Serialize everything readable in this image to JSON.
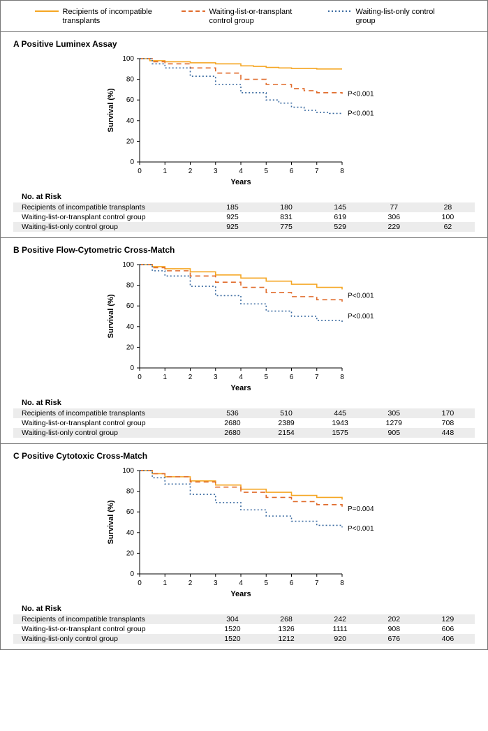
{
  "legend": {
    "items": [
      {
        "label": "Recipients of incompatible transplants",
        "color": "#f5a623",
        "dash": "solid"
      },
      {
        "label": "Waiting-list-or-transplant control group",
        "color": "#e06b2b",
        "dash": "dash"
      },
      {
        "label": "Waiting-list-only control group",
        "color": "#3a6aa0",
        "dash": "dot"
      }
    ]
  },
  "chart_common": {
    "ylabel": "Survival (%)",
    "xlabel": "Years",
    "ylim": [
      0,
      100
    ],
    "xlim": [
      0,
      8
    ],
    "yticks": [
      0,
      20,
      40,
      60,
      80,
      100
    ],
    "xticks": [
      0,
      1,
      2,
      3,
      4,
      5,
      6,
      7,
      8
    ],
    "background_color": "#ffffff",
    "axis_color": "#000000",
    "label_fontsize": 11,
    "tick_fontsize": 10,
    "line_width": 1.6
  },
  "panels": [
    {
      "key": "A",
      "title": "A  Positive Luminex Assay",
      "series": [
        {
          "legend_idx": 0,
          "points": [
            [
              0,
              100
            ],
            [
              0.4,
              98
            ],
            [
              1,
              97
            ],
            [
              2,
              96
            ],
            [
              3,
              95
            ],
            [
              4,
              93
            ],
            [
              4.5,
              92.5
            ],
            [
              5,
              91.5
            ],
            [
              5.5,
              91
            ],
            [
              6,
              90.5
            ],
            [
              7,
              90
            ],
            [
              8,
              90
            ]
          ]
        },
        {
          "legend_idx": 1,
          "points": [
            [
              0,
              100
            ],
            [
              0.5,
              97
            ],
            [
              1,
              95
            ],
            [
              2,
              91
            ],
            [
              3,
              86
            ],
            [
              4,
              80
            ],
            [
              5,
              75
            ],
            [
              6,
              71
            ],
            [
              6.5,
              69
            ],
            [
              7,
              67
            ],
            [
              8,
              66
            ]
          ]
        },
        {
          "legend_idx": 2,
          "points": [
            [
              0,
              100
            ],
            [
              0.5,
              95
            ],
            [
              1,
              91
            ],
            [
              2,
              83
            ],
            [
              3,
              75
            ],
            [
              4,
              67
            ],
            [
              5,
              60
            ],
            [
              5.5,
              57
            ],
            [
              6,
              53
            ],
            [
              6.5,
              50
            ],
            [
              7,
              48
            ],
            [
              7.5,
              47
            ],
            [
              8,
              47
            ]
          ]
        }
      ],
      "pvalues": [
        {
          "text": "P<0.001",
          "y": 66
        },
        {
          "text": "P<0.001",
          "y": 47
        }
      ],
      "risk_label": "No. at Risk",
      "risk_rows": [
        {
          "label": "Recipients of incompatible transplants",
          "vals": [
            "185",
            "180",
            "145",
            "77",
            "28"
          ]
        },
        {
          "label": "Waiting-list-or-transplant control group",
          "vals": [
            "925",
            "831",
            "619",
            "306",
            "100"
          ]
        },
        {
          "label": "Waiting-list-only control group",
          "vals": [
            "925",
            "775",
            "529",
            "229",
            "62"
          ]
        }
      ]
    },
    {
      "key": "B",
      "title": "B  Positive Flow-Cytometric Cross-Match",
      "series": [
        {
          "legend_idx": 0,
          "points": [
            [
              0,
              100
            ],
            [
              0.5,
              98
            ],
            [
              1,
              96
            ],
            [
              2,
              93
            ],
            [
              3,
              90
            ],
            [
              4,
              87
            ],
            [
              5,
              84
            ],
            [
              6,
              81
            ],
            [
              7,
              78
            ],
            [
              8,
              76
            ]
          ]
        },
        {
          "legend_idx": 1,
          "points": [
            [
              0,
              100
            ],
            [
              0.5,
              97
            ],
            [
              1,
              94
            ],
            [
              2,
              89
            ],
            [
              3,
              83
            ],
            [
              4,
              78
            ],
            [
              5,
              73
            ],
            [
              6,
              69
            ],
            [
              7,
              66
            ],
            [
              8,
              64
            ]
          ]
        },
        {
          "legend_idx": 2,
          "points": [
            [
              0,
              100
            ],
            [
              0.5,
              94
            ],
            [
              1,
              89
            ],
            [
              2,
              79
            ],
            [
              3,
              70
            ],
            [
              4,
              62
            ],
            [
              5,
              55
            ],
            [
              6,
              50
            ],
            [
              7,
              46
            ],
            [
              8,
              44
            ]
          ]
        }
      ],
      "pvalues": [
        {
          "text": "P<0.001",
          "y": 70
        },
        {
          "text": "P<0.001",
          "y": 50
        }
      ],
      "risk_label": "No. at Risk",
      "risk_rows": [
        {
          "label": "Recipients of incompatible transplants",
          "vals": [
            "536",
            "510",
            "445",
            "305",
            "170"
          ]
        },
        {
          "label": "Waiting-list-or-transplant control group",
          "vals": [
            "2680",
            "2389",
            "1943",
            "1279",
            "708"
          ]
        },
        {
          "label": "Waiting-list-only control group",
          "vals": [
            "2680",
            "2154",
            "1575",
            "905",
            "448"
          ]
        }
      ]
    },
    {
      "key": "C",
      "title": "C  Positive Cytotoxic Cross-Match",
      "series": [
        {
          "legend_idx": 0,
          "points": [
            [
              0,
              100
            ],
            [
              0.5,
              97
            ],
            [
              1,
              94
            ],
            [
              2,
              90
            ],
            [
              3,
              86
            ],
            [
              4,
              82
            ],
            [
              5,
              79
            ],
            [
              6,
              76
            ],
            [
              7,
              74
            ],
            [
              8,
              72
            ]
          ]
        },
        {
          "legend_idx": 1,
          "points": [
            [
              0,
              100
            ],
            [
              0.5,
              97
            ],
            [
              1,
              94
            ],
            [
              2,
              89
            ],
            [
              3,
              84
            ],
            [
              4,
              79
            ],
            [
              5,
              74
            ],
            [
              6,
              70
            ],
            [
              7,
              67
            ],
            [
              8,
              65
            ]
          ]
        },
        {
          "legend_idx": 2,
          "points": [
            [
              0,
              100
            ],
            [
              0.5,
              93
            ],
            [
              1,
              87
            ],
            [
              2,
              77
            ],
            [
              3,
              69
            ],
            [
              4,
              62
            ],
            [
              5,
              56
            ],
            [
              6,
              51
            ],
            [
              7,
              47
            ],
            [
              8,
              45
            ]
          ]
        }
      ],
      "pvalues": [
        {
          "text": "P=0.004",
          "y": 63
        },
        {
          "text": "P<0.001",
          "y": 44
        }
      ],
      "risk_label": "No. at Risk",
      "risk_rows": [
        {
          "label": "Recipients of incompatible transplants",
          "vals": [
            "304",
            "268",
            "242",
            "202",
            "129"
          ]
        },
        {
          "label": "Waiting-list-or-transplant control group",
          "vals": [
            "1520",
            "1326",
            "1111",
            "908",
            "606"
          ]
        },
        {
          "label": "Waiting-list-only control group",
          "vals": [
            "1520",
            "1212",
            "920",
            "676",
            "406"
          ]
        }
      ]
    }
  ]
}
